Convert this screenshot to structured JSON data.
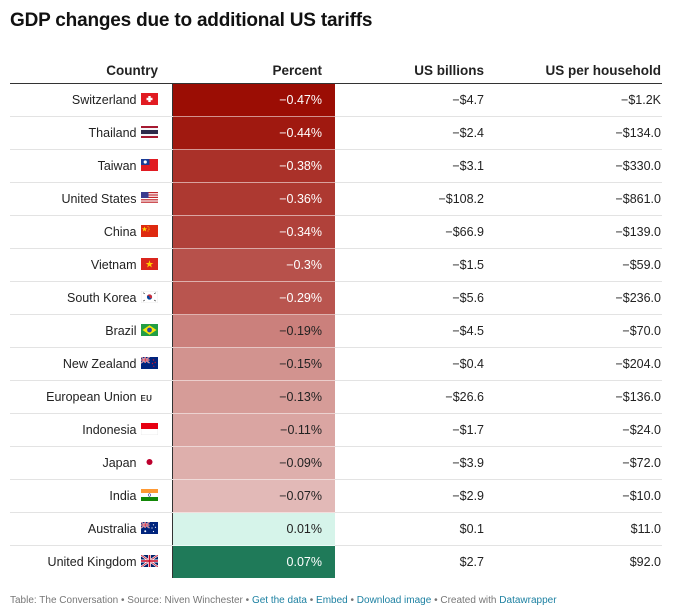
{
  "title": "GDP changes due to additional US tariffs",
  "columns": {
    "country": "Country",
    "percent": "Percent",
    "billions": "US billions",
    "household": "US per household"
  },
  "colors": {
    "neg_strong": "#9b0d04",
    "pos_strong": "#1f7a59",
    "pos_light": "#d9f6ec",
    "neutral": "#f4e4e3"
  },
  "chart_data": {
    "type": "table",
    "title": "GDP changes due to additional US tariffs",
    "columns": [
      "Country",
      "Percent",
      "US billions",
      "US per household"
    ],
    "rows": [
      {
        "country": "Switzerland",
        "flag": "switzerland-flag",
        "percent_label": "−0.47%",
        "percent": -0.47,
        "billions": "−$4.7",
        "household": "−$1.2K"
      },
      {
        "country": "Thailand",
        "flag": "thailand-flag",
        "percent_label": "−0.44%",
        "percent": -0.44,
        "billions": "−$2.4",
        "household": "−$134.0"
      },
      {
        "country": "Taiwan",
        "flag": "taiwan-flag",
        "percent_label": "−0.38%",
        "percent": -0.38,
        "billions": "−$3.1",
        "household": "−$330.0"
      },
      {
        "country": "United States",
        "flag": "united-states-flag",
        "percent_label": "−0.36%",
        "percent": -0.36,
        "billions": "−$108.2",
        "household": "−$861.0"
      },
      {
        "country": "China",
        "flag": "china-flag",
        "percent_label": "−0.34%",
        "percent": -0.34,
        "billions": "−$66.9",
        "household": "−$139.0"
      },
      {
        "country": "Vietnam",
        "flag": "vietnam-flag",
        "percent_label": "−0.3%",
        "percent": -0.3,
        "billions": "−$1.5",
        "household": "−$59.0"
      },
      {
        "country": "South Korea",
        "flag": "south-korea-flag",
        "percent_label": "−0.29%",
        "percent": -0.29,
        "billions": "−$5.6",
        "household": "−$236.0"
      },
      {
        "country": "Brazil",
        "flag": "brazil-flag",
        "percent_label": "−0.19%",
        "percent": -0.19,
        "billions": "−$4.5",
        "household": "−$70.0"
      },
      {
        "country": "New Zealand",
        "flag": "new-zealand-flag",
        "percent_label": "−0.15%",
        "percent": -0.15,
        "billions": "−$0.4",
        "household": "−$204.0"
      },
      {
        "country": "European Union",
        "flag": "eu-text",
        "flag_text": "EU",
        "percent_label": "−0.13%",
        "percent": -0.13,
        "billions": "−$26.6",
        "household": "−$136.0"
      },
      {
        "country": "Indonesia",
        "flag": "indonesia-flag",
        "percent_label": "−0.11%",
        "percent": -0.11,
        "billions": "−$1.7",
        "household": "−$24.0"
      },
      {
        "country": "Japan",
        "flag": "japan-flag",
        "percent_label": "−0.09%",
        "percent": -0.09,
        "billions": "−$3.9",
        "household": "−$72.0"
      },
      {
        "country": "India",
        "flag": "india-flag",
        "percent_label": "−0.07%",
        "percent": -0.07,
        "billions": "−$2.9",
        "household": "−$10.0"
      },
      {
        "country": "Australia",
        "flag": "australia-flag",
        "percent_label": "0.01%",
        "percent": 0.01,
        "billions": "$0.1",
        "household": "$11.0"
      },
      {
        "country": "United Kingdom",
        "flag": "united-kingdom-flag",
        "percent_label": "0.07%",
        "percent": 0.07,
        "billions": "$2.7",
        "household": "$92.0"
      }
    ]
  },
  "footer": {
    "prefix": "Table: The Conversation • Source: Niven Winchester • ",
    "get_data": "Get the data",
    "sep1": " • ",
    "embed": "Embed",
    "sep2": " • ",
    "download": "Download image",
    "sep3": " • Created with ",
    "datawrapper": "Datawrapper"
  }
}
